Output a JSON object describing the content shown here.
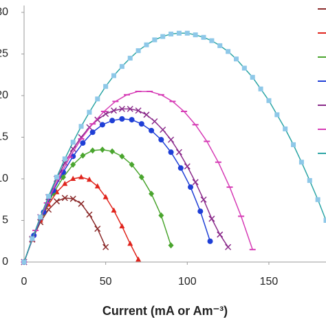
{
  "chart_data": {
    "type": "line",
    "xlabel": "Current (mA or Am⁻³)",
    "xlim": [
      0,
      185
    ],
    "ylim": [
      0,
      30
    ],
    "xticks": [
      0,
      50,
      100,
      150
    ],
    "yticks": [
      0,
      5,
      10,
      15,
      20,
      25,
      30
    ],
    "series": [
      {
        "color": "#8b2a2a",
        "marker": "x",
        "x": [
          0,
          5,
          10,
          15,
          20,
          25,
          30,
          35,
          40,
          45,
          50
        ],
        "values": [
          0,
          2.7,
          4.8,
          6.3,
          7.3,
          7.7,
          7.6,
          7,
          5.7,
          4,
          1.8
        ]
      },
      {
        "color": "#e0241c",
        "marker": "triangle",
        "x": [
          0,
          5,
          10,
          15,
          20,
          25,
          30,
          35,
          40,
          45,
          50,
          55,
          60,
          65,
          70
        ],
        "values": [
          0,
          2.7,
          5,
          6.9,
          8.4,
          9.4,
          10,
          10.2,
          9.9,
          9.1,
          7.8,
          6.2,
          4.3,
          2.2,
          0.3
        ]
      },
      {
        "color": "#4aa52e",
        "marker": "diamond",
        "x": [
          0,
          6,
          12,
          18,
          24,
          30,
          36,
          42,
          48,
          54,
          60,
          66,
          72,
          78,
          84,
          90
        ],
        "values": [
          0,
          3.2,
          5.9,
          8.3,
          10.2,
          11.7,
          12.8,
          13.4,
          13.5,
          13.3,
          12.7,
          11.7,
          10.2,
          8.2,
          5.6,
          2
        ]
      },
      {
        "color": "#1f3fd6",
        "marker": "circle",
        "x": [
          0,
          6,
          12,
          18,
          24,
          30,
          36,
          42,
          48,
          54,
          60,
          66,
          72,
          78,
          84,
          90,
          96,
          102,
          108,
          114
        ],
        "values": [
          0,
          3.2,
          6,
          8.6,
          10.8,
          12.7,
          14.3,
          15.6,
          16.5,
          17,
          17.2,
          17.1,
          16.6,
          15.8,
          14.7,
          13.2,
          11.3,
          9,
          6.1,
          2.5
        ]
      },
      {
        "color": "#8a2a8a",
        "marker": "x",
        "x": [
          0,
          5,
          10,
          15,
          20,
          25,
          30,
          35,
          40,
          45,
          50,
          55,
          60,
          65,
          70,
          75,
          80,
          85,
          90,
          95,
          100,
          105,
          110,
          115,
          120,
          125
        ],
        "values": [
          0,
          2.8,
          5.4,
          7.8,
          10,
          11.9,
          13.6,
          15,
          16.2,
          17.1,
          17.8,
          18.2,
          18.4,
          18.4,
          18.2,
          17.7,
          16.9,
          15.9,
          14.7,
          13.2,
          11.5,
          9.6,
          7.5,
          5.2,
          3.3,
          1.8
        ]
      },
      {
        "color": "#d63bb5",
        "marker": "dash",
        "x": [
          0,
          7,
          14,
          21,
          28,
          35,
          42,
          49,
          56,
          63,
          70,
          77,
          84,
          91,
          98,
          105,
          112,
          119,
          126,
          133,
          140
        ],
        "values": [
          0,
          3.8,
          7.1,
          10,
          12.6,
          14.8,
          16.6,
          18.1,
          19.3,
          20.1,
          20.5,
          20.5,
          20.1,
          19.3,
          18.1,
          16.5,
          14.5,
          12,
          9,
          5.5,
          1.5
        ]
      },
      {
        "color": "#2ba5a5",
        "marker": "square",
        "marker_color": "#8ec8e8",
        "x": [
          0,
          5,
          10,
          15,
          20,
          25,
          30,
          35,
          40,
          45,
          50,
          55,
          60,
          65,
          70,
          75,
          80,
          85,
          90,
          95,
          100,
          105,
          110,
          115,
          120,
          125,
          130,
          135,
          140,
          145,
          150,
          155,
          160,
          165,
          170,
          175,
          180,
          185
        ],
        "values": [
          0,
          2.8,
          5.4,
          7.9,
          10.2,
          12.4,
          14.4,
          16.3,
          18,
          19.6,
          21.1,
          22.4,
          23.5,
          24.5,
          25.4,
          26.1,
          26.7,
          27.1,
          27.4,
          27.5,
          27.5,
          27.3,
          27,
          26.6,
          26,
          25.3,
          24.4,
          23.3,
          22.2,
          20.8,
          19.4,
          17.7,
          16,
          14.1,
          12,
          9.8,
          7.5,
          5
        ]
      }
    ]
  }
}
